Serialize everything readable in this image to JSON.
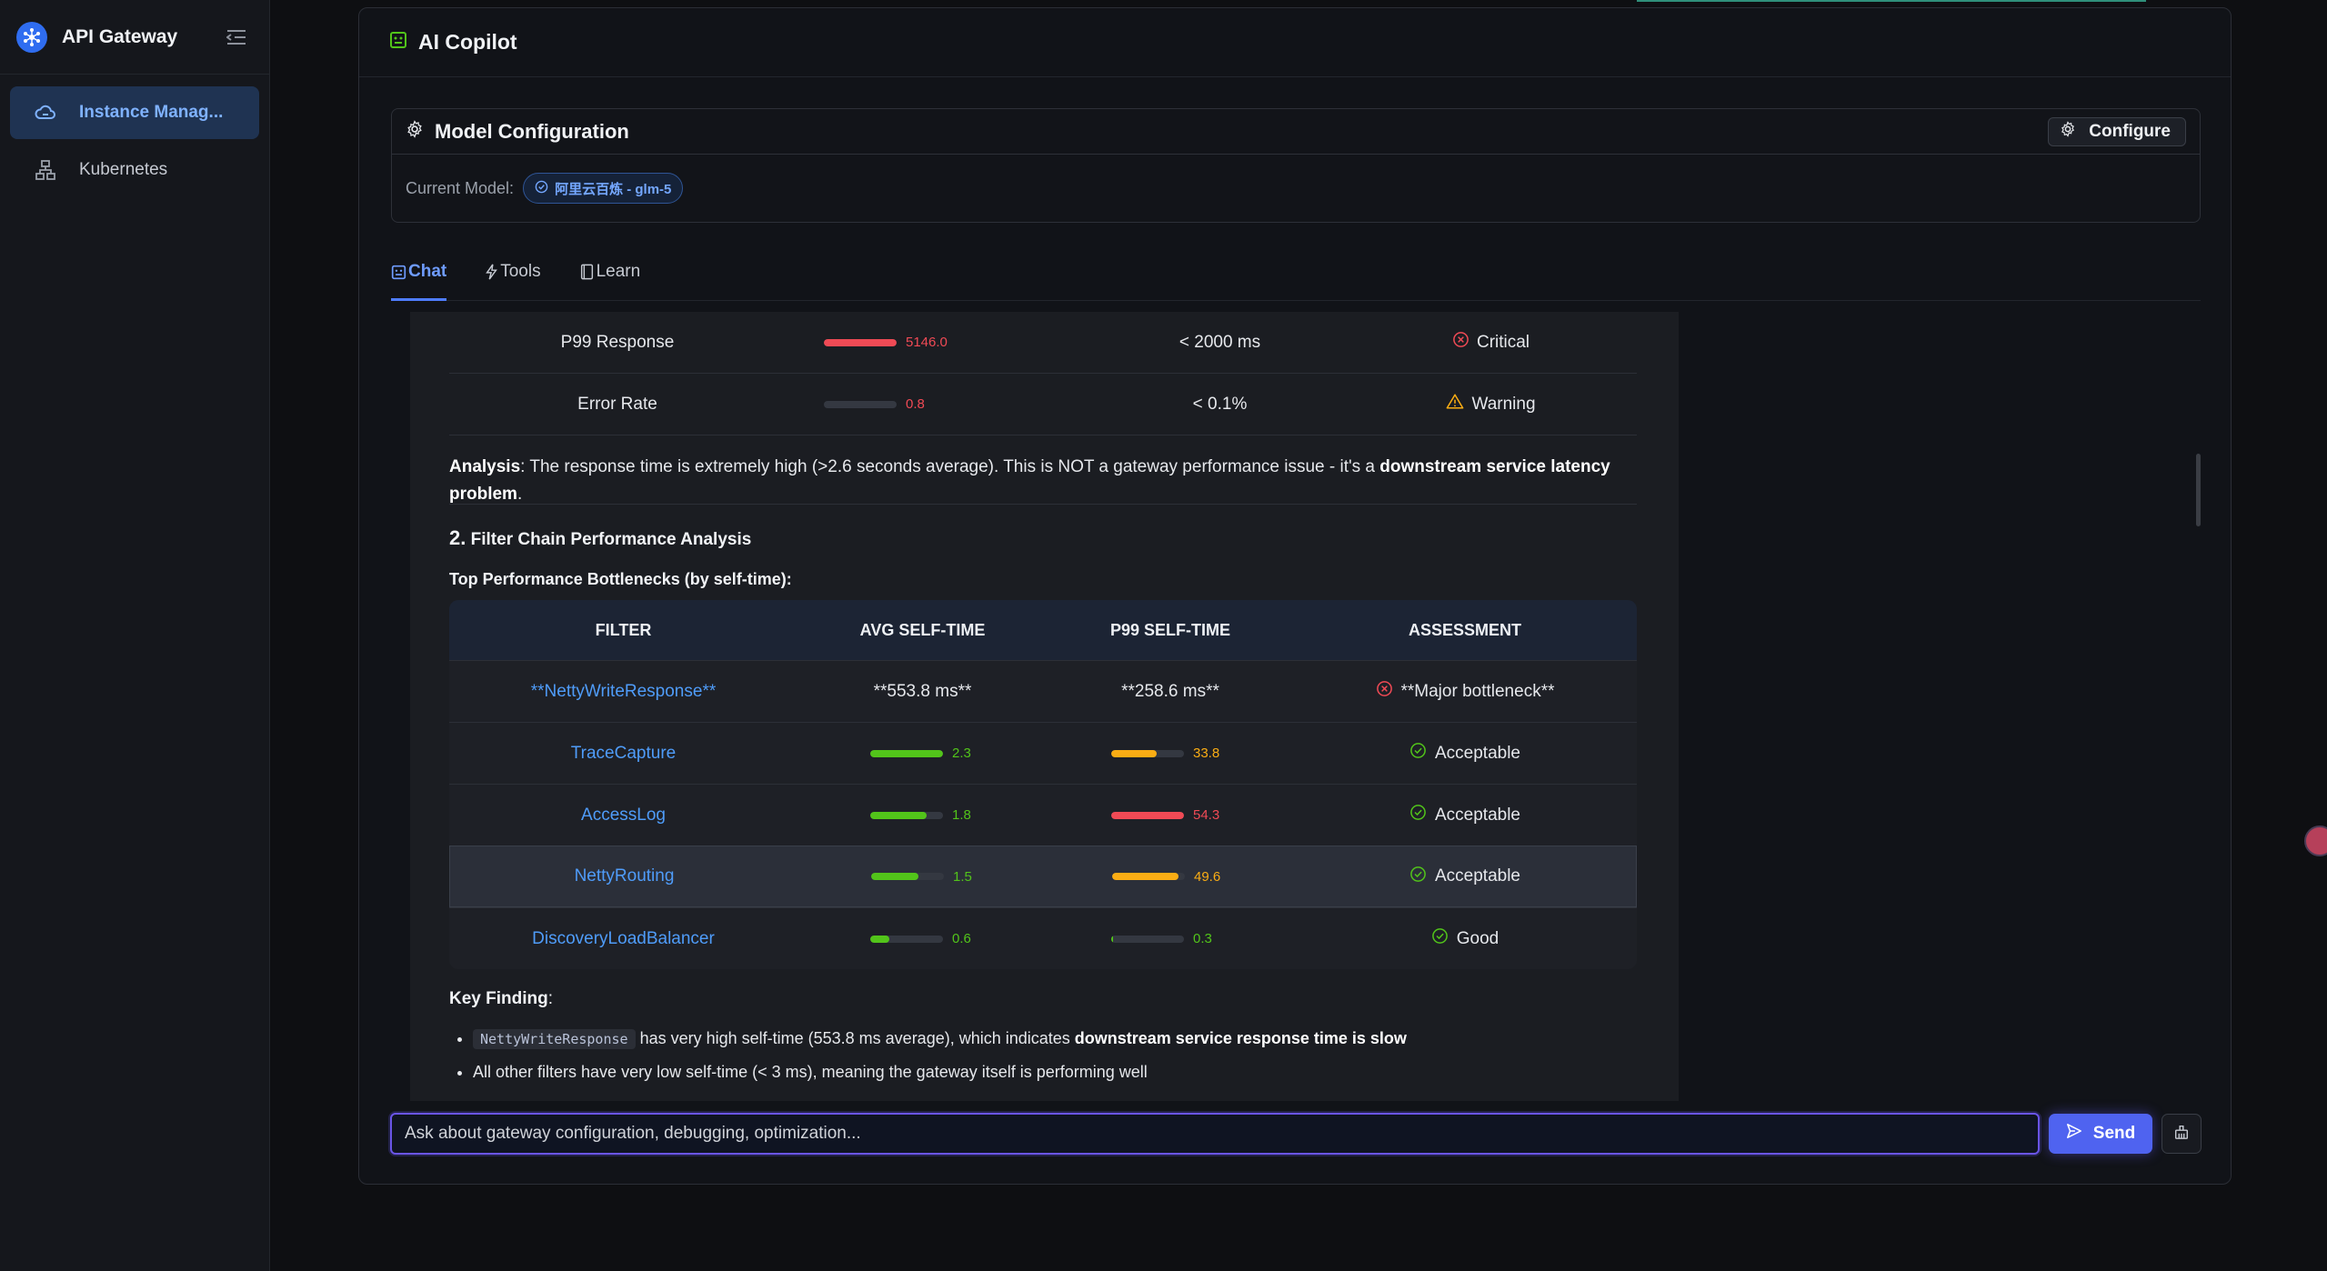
{
  "sidebar": {
    "title": "API Gateway",
    "items": [
      {
        "label": "Instance Manag...",
        "icon": "cloud-icon",
        "active": true
      },
      {
        "label": "Kubernetes",
        "icon": "sitemap-icon",
        "active": false
      }
    ]
  },
  "panel": {
    "title": "AI Copilot",
    "model_config": {
      "title": "Model Configuration",
      "configure_label": "Configure",
      "current_model_label": "Current Model:",
      "current_model": "阿里云百炼 - glm-5"
    },
    "tabs": [
      {
        "label": "Chat",
        "icon": "robot-icon",
        "active": true
      },
      {
        "label": "Tools",
        "icon": "bolt-icon",
        "active": false
      },
      {
        "label": "Learn",
        "icon": "book-icon",
        "active": false
      }
    ]
  },
  "chat": {
    "metrics": [
      {
        "name": "P99 Response",
        "value": "5146.0",
        "fill": 1.0,
        "color": "#f04a55",
        "target": "< 2000 ms",
        "status": "Critical",
        "status_icon": "x-circle-icon"
      },
      {
        "name": "Error Rate",
        "value": "0.8",
        "fill": 0.0,
        "color": "#f04a55",
        "target": "< 0.1%",
        "status": "Warning",
        "status_icon": "warning-triangle-icon"
      }
    ],
    "analysis": {
      "label": "Analysis",
      "text": ": The response time is extremely high (>2.6 seconds average). This is NOT a gateway performance issue - it's a ",
      "bold": "downstream service latency problem",
      "end": "."
    },
    "section2": {
      "num": "2.",
      "title": " Filter Chain Performance Analysis",
      "subtitle": "Top Performance Bottlenecks (by self-time):"
    },
    "filter_table": {
      "headers": [
        "FILTER",
        "AVG SELF-TIME",
        "P99 SELF-TIME",
        "ASSESSMENT"
      ],
      "rows": [
        {
          "filter": "**NettyWriteResponse**",
          "avg_text": "**553.8 ms**",
          "p99_text": "**258.6 ms**",
          "assessment": "**Major bottleneck**",
          "icon": "x-circle-icon",
          "plain": true
        },
        {
          "filter": "TraceCapture",
          "avg": "2.3",
          "avg_fill": 1.0,
          "avg_color": "#52c41a",
          "p99": "33.8",
          "p99_fill": 0.62,
          "p99_color": "#faad14",
          "assessment": "Acceptable",
          "icon": "check-circle-icon"
        },
        {
          "filter": "AccessLog",
          "avg": "1.8",
          "avg_fill": 0.78,
          "avg_color": "#52c41a",
          "p99": "54.3",
          "p99_fill": 1.0,
          "p99_color": "#f04a55",
          "assessment": "Acceptable",
          "icon": "check-circle-icon"
        },
        {
          "filter": "NettyRouting",
          "avg": "1.5",
          "avg_fill": 0.65,
          "avg_color": "#52c41a",
          "p99": "49.6",
          "p99_fill": 0.91,
          "p99_color": "#faad14",
          "assessment": "Acceptable",
          "icon": "check-circle-icon",
          "highlight": true
        },
        {
          "filter": "DiscoveryLoadBalancer",
          "avg": "0.6",
          "avg_fill": 0.26,
          "avg_color": "#52c41a",
          "p99": "0.3",
          "p99_fill": 0.02,
          "p99_color": "#52c41a",
          "assessment": "Good",
          "icon": "check-circle-icon"
        }
      ]
    },
    "key_finding": {
      "label": "Key Finding",
      "colon": ":",
      "bullets": [
        {
          "code": "NettyWriteResponse",
          "text": " has very high self-time (553.8 ms average), which indicates ",
          "bold": "downstream service response time is slow"
        },
        {
          "text": "All other filters have very low self-time (< 3 ms), meaning the gateway itself is performing well"
        }
      ]
    }
  },
  "input": {
    "placeholder": "Ask about gateway configuration, debugging, optimization...",
    "send_label": "Send"
  },
  "colors": {
    "accent": "#4f7dff",
    "critical": "#f04a55",
    "warning": "#faad14",
    "good": "#52c41a",
    "link": "#4f9cf9"
  }
}
